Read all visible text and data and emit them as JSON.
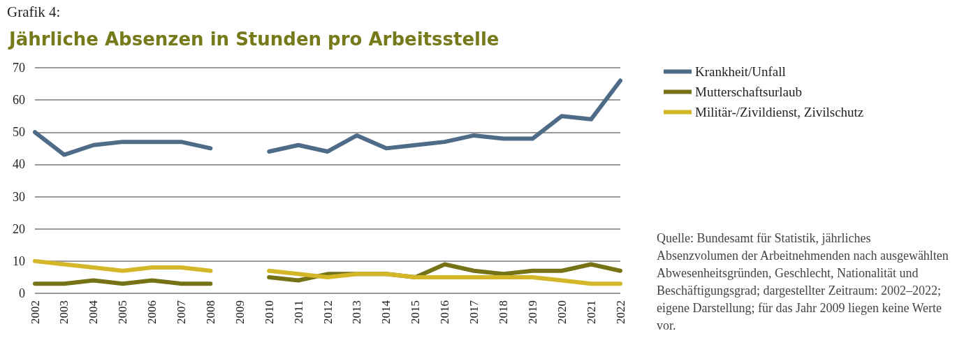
{
  "chart_data": {
    "type": "line",
    "title": "Jährliche Absenzen in Stunden pro Arbeitsstelle",
    "annotations": [
      "Grafik 4:",
      "Quelle: Bundesamt für Statistik, jährliches Absenzvolumen der Arbeitnehmenden nach ausgewählten Abwesenheitsgründen, Geschlecht, Nationalität und Beschäftigungsgrad; dargestellter Zeitraum: 2002–2022; eigene Darstellung; für das Jahr 2009 liegen keine Werte vor."
    ],
    "categories": [
      "2002",
      "2003",
      "2004",
      "2005",
      "2006",
      "2007",
      "2008",
      "2009",
      "2010",
      "2011",
      "2012",
      "2013",
      "2014",
      "2015",
      "2016",
      "2017",
      "2018",
      "2019",
      "2020",
      "2021",
      "2022"
    ],
    "series": [
      {
        "name": "Krankheit/Unfall",
        "color": "#4e6b88",
        "values": [
          50,
          43,
          46,
          47,
          47,
          47,
          45,
          null,
          44,
          46,
          44,
          49,
          45,
          46,
          47,
          49,
          48,
          48,
          55,
          54,
          66
        ]
      },
      {
        "name": "Mutterschaftsurlaub",
        "color": "#767317",
        "values": [
          3,
          3,
          4,
          3,
          4,
          3,
          3,
          null,
          5,
          4,
          6,
          6,
          6,
          5,
          9,
          7,
          6,
          7,
          7,
          9,
          7
        ]
      },
      {
        "name": "Militär-/Zivildienst, Zivilschutz",
        "color": "#d4b728",
        "values": [
          10,
          9,
          8,
          7,
          8,
          8,
          7,
          null,
          7,
          6,
          5,
          6,
          6,
          5,
          5,
          5,
          5,
          5,
          4,
          3,
          3
        ]
      }
    ],
    "ylim": [
      0,
      70
    ],
    "yticks": [
      0,
      10,
      20,
      30,
      40,
      50,
      60,
      70
    ],
    "grid": "y",
    "legend": "right",
    "marker": "none",
    "line_style": "solid"
  }
}
